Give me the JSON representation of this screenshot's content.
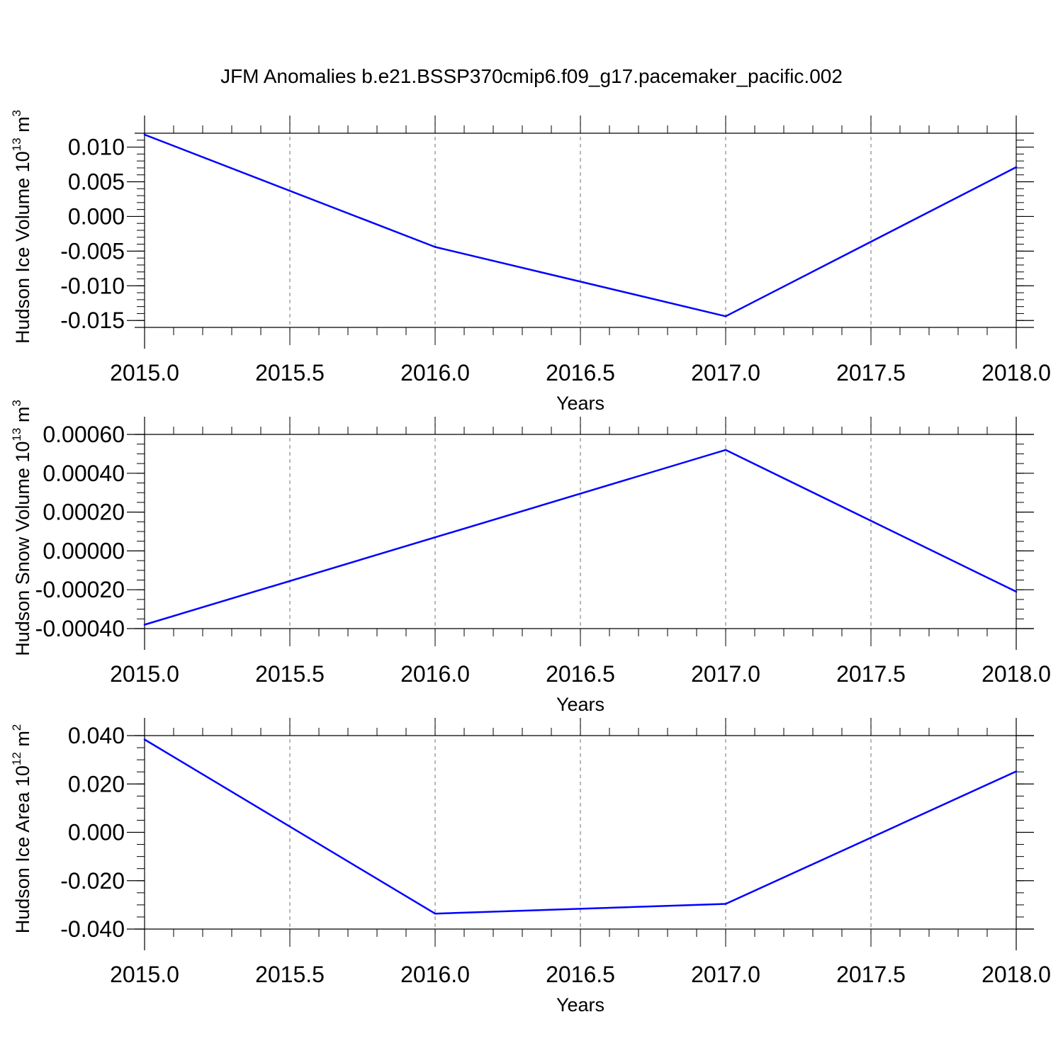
{
  "title": "JFM Anomalies b.e21.BSSP370cmip6.f09_g17.pacemaker_pacific.002",
  "line_color": "#0000ff",
  "chart_data": [
    {
      "type": "line",
      "title": "JFM Anomalies b.e21.BSSP370cmip6.f09_g17.pacemaker_pacific.002",
      "xlabel": "Years",
      "ylabel": {
        "text": "Hudson Ice Volume 10",
        "sup": "13",
        "unit": " m",
        "unit_sup": "3"
      },
      "x": [
        2015,
        2016,
        2017,
        2018
      ],
      "series": [
        {
          "values": [
            0.0118,
            -0.0044,
            -0.0144,
            0.0071
          ]
        }
      ],
      "xlim": [
        2015,
        2018
      ],
      "ylim": [
        -0.016,
        0.012
      ],
      "xticks": [
        2015.0,
        2015.5,
        2016.0,
        2016.5,
        2017.0,
        2017.5,
        2018.0
      ],
      "xtick_labels": [
        "2015.0",
        "2015.5",
        "2016.0",
        "2016.5",
        "2017.0",
        "2017.5",
        "2018.0"
      ],
      "yticks": [
        0.01,
        0.005,
        0.0,
        -0.005,
        -0.01,
        -0.015
      ],
      "ytick_labels": [
        "0.010",
        "0.005",
        "0.000",
        "-0.005",
        "-0.010",
        "-0.015"
      ],
      "grid": "vertical dashed"
    },
    {
      "type": "line",
      "xlabel": "Years",
      "ylabel": {
        "text": "Hudson Snow Volume 10",
        "sup": "13",
        "unit": " m",
        "unit_sup": "3"
      },
      "x": [
        2015,
        2016,
        2017,
        2018
      ],
      "series": [
        {
          "values": [
            -0.00038,
            7e-05,
            0.00052,
            -0.00021
          ]
        }
      ],
      "xlim": [
        2015,
        2018
      ],
      "ylim": [
        -0.0004,
        0.0006
      ],
      "xticks": [
        2015.0,
        2015.5,
        2016.0,
        2016.5,
        2017.0,
        2017.5,
        2018.0
      ],
      "xtick_labels": [
        "2015.0",
        "2015.5",
        "2016.0",
        "2016.5",
        "2017.0",
        "2017.5",
        "2018.0"
      ],
      "yticks": [
        0.0006,
        0.0004,
        0.0002,
        0.0,
        -0.0002,
        -0.0004
      ],
      "ytick_labels": [
        "0.00060",
        "0.00040",
        "0.00020",
        "0.00000",
        "-0.00020",
        "-0.00040"
      ],
      "grid": "vertical dashed"
    },
    {
      "type": "line",
      "xlabel": "Years",
      "ylabel": {
        "text": "Hudson Ice Area 10",
        "sup": "12",
        "unit": " m",
        "unit_sup": "2"
      },
      "x": [
        2015,
        2016,
        2017,
        2018
      ],
      "series": [
        {
          "values": [
            0.0384,
            -0.0336,
            -0.0296,
            0.0252
          ]
        }
      ],
      "xlim": [
        2015,
        2018
      ],
      "ylim": [
        -0.04,
        0.04
      ],
      "xticks": [
        2015.0,
        2015.5,
        2016.0,
        2016.5,
        2017.0,
        2017.5,
        2018.0
      ],
      "xtick_labels": [
        "2015.0",
        "2015.5",
        "2016.0",
        "2016.5",
        "2017.0",
        "2017.5",
        "2018.0"
      ],
      "yticks": [
        0.04,
        0.02,
        0.0,
        -0.02,
        -0.04
      ],
      "ytick_labels": [
        "0.040",
        "0.020",
        "0.000",
        "-0.020",
        "-0.040"
      ],
      "grid": "vertical dashed"
    }
  ]
}
